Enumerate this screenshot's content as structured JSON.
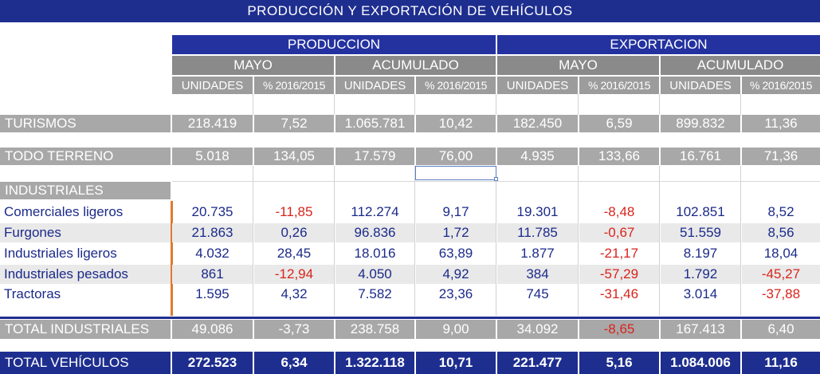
{
  "title": "PRODUCCIÓN Y EXPORTACIÓN DE VEHÍCULOS",
  "headers": {
    "groups": [
      "PRODUCCION",
      "EXPORTACION"
    ],
    "periods": [
      "MAYO",
      "ACUMULADO",
      "MAYO",
      "ACUMULADO"
    ],
    "columns": [
      "UNIDADES",
      "% 2016/2015",
      "UNIDADES",
      "% 2016/2015",
      "UNIDADES",
      "% 2016/2015",
      "UNIDADES",
      "% 2016/2015"
    ]
  },
  "rows": {
    "turismos": {
      "label": "TURISMOS",
      "values": [
        "218.419",
        "7,52",
        "1.065.781",
        "10,42",
        "182.450",
        "6,59",
        "899.832",
        "11,36"
      ]
    },
    "todo_terreno": {
      "label": "TODO TERRENO",
      "values": [
        "5.018",
        "134,05",
        "17.579",
        "76,00",
        "4.935",
        "133,66",
        "16.761",
        "71,36"
      ]
    },
    "industriales_header": {
      "label": "INDUSTRIALES"
    },
    "industriales": [
      {
        "label": "Comerciales ligeros",
        "values": [
          "20.735",
          "-11,85",
          "112.274",
          "9,17",
          "19.301",
          "-8,48",
          "102.851",
          "8,52"
        ]
      },
      {
        "label": "Furgones",
        "values": [
          "21.863",
          "0,26",
          "96.836",
          "1,72",
          "11.785",
          "-0,67",
          "51.559",
          "8,56"
        ]
      },
      {
        "label": "Industriales ligeros",
        "values": [
          "4.032",
          "28,45",
          "18.016",
          "63,89",
          "1.877",
          "-21,17",
          "8.197",
          "18,04"
        ]
      },
      {
        "label": "Industriales pesados",
        "values": [
          "861",
          "-12,94",
          "4.050",
          "4,92",
          "384",
          "-57,29",
          "1.792",
          "-45,27"
        ]
      },
      {
        "label": "Tractoras",
        "values": [
          "1.595",
          "4,32",
          "7.582",
          "23,36",
          "745",
          "-31,46",
          "3.014",
          "-37,88"
        ]
      }
    ],
    "total_industriales": {
      "label": "TOTAL INDUSTRIALES",
      "values": [
        "49.086",
        "-3,73",
        "238.758",
        "9,00",
        "34.092",
        "-8,65",
        "167.413",
        "6,40"
      ]
    },
    "total_vehiculos": {
      "label": "TOTAL VEHÍCULOS",
      "values": [
        "272.523",
        "6,34",
        "1.322.118",
        "10,71",
        "221.477",
        "5,16",
        "1.084.006",
        "11,16"
      ]
    }
  },
  "colors": {
    "title_bg": "#1e2e8f",
    "header_blue": "#2432a0",
    "header_gray": "#8a8a8a",
    "row_gray": "#a8a8a8",
    "text_blue": "#1b2a8a",
    "negative_red": "#d8241c",
    "accent_orange": "#e07a2e"
  }
}
